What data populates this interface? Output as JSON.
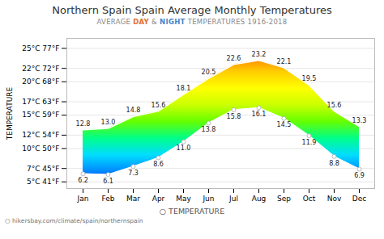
{
  "chart_data": {
    "type": "area",
    "title": "Northern Spain Spain Average Monthly Temperatures",
    "subtitle": [
      {
        "text": "AVERAGE ",
        "color": "#888888"
      },
      {
        "text": "DAY",
        "color": "#e07030"
      },
      {
        "text": " & ",
        "color": "#888888"
      },
      {
        "text": "NIGHT",
        "color": "#4488cc"
      },
      {
        "text": " TEMPERATURES 1916-2018",
        "color": "#888888"
      }
    ],
    "categories": [
      "Jan",
      "Feb",
      "Mar",
      "Apr",
      "May",
      "Jun",
      "Jul",
      "Aug",
      "Sep",
      "Oct",
      "Nov",
      "Dec"
    ],
    "series": [
      {
        "color": "#ffffff",
        "values": [
          12.8,
          13.0,
          14.8,
          15.6,
          18.1,
          20.5,
          22.6,
          23.2,
          22.1,
          19.5,
          15.6,
          13.3
        ],
        "value_labels": [
          "12.8",
          "13.0",
          "14.8",
          "15.6",
          "18.1",
          "20.5",
          "22.6",
          "23.2",
          "22.1",
          "19.5",
          "15.6",
          "13.3"
        ]
      },
      {
        "color": "#ffffff",
        "marker": "o",
        "values": [
          6.2,
          6.1,
          7.3,
          8.6,
          11.0,
          13.8,
          15.8,
          16.1,
          14.5,
          11.9,
          8.8,
          6.9
        ],
        "value_labels": [
          "6.2",
          "6.1",
          "7.3",
          "8.6",
          "11.0",
          "13.8",
          "15.8",
          "16.1",
          "14.5",
          "11.9",
          "8.8",
          "6.9"
        ]
      }
    ],
    "colors": [
      "#1a00ff",
      "#0088ff",
      "#00ddff",
      "#00ff88",
      "#66ff00",
      "#ccff00",
      "#ffff00",
      "#ffcc00",
      "#ff7700",
      "#ff0000"
    ],
    "ylim": [
      4.0,
      26.5
    ],
    "yticks": [
      {
        "value": 5,
        "label": "5°C 41°F"
      },
      {
        "value": 7,
        "label": "7°C 45°F"
      },
      {
        "value": 10,
        "label": "10°C 50°F"
      },
      {
        "value": 12,
        "label": "12°C 54°F"
      },
      {
        "value": 15,
        "label": "15°C 59°F"
      },
      {
        "value": 17,
        "label": "17°C 63°F"
      },
      {
        "value": 20,
        "label": "20°C 68°F"
      },
      {
        "value": 22,
        "label": "22°C 72°F"
      },
      {
        "value": 25,
        "label": "25°C 77°F"
      }
    ],
    "ylabel": "TEMPERATURE",
    "grid": true,
    "data_labels": true,
    "legend_label": "○   TEMPERATURE",
    "watermark": "○ hikersbay.com/climate/spain/northernspain"
  }
}
